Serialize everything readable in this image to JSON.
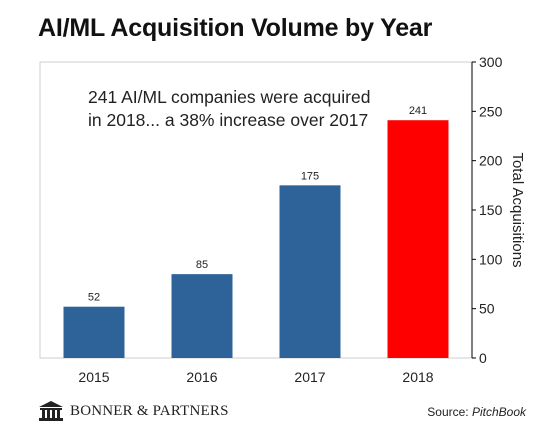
{
  "chart_data": {
    "type": "bar",
    "title": "AI/ML Acquisition Volume by Year",
    "annotation_lines": [
      "241 AI/ML companies were acquired",
      "in 2018... a 38% increase over 2017"
    ],
    "categories": [
      "2015",
      "2016",
      "2017",
      "2018"
    ],
    "values": [
      52,
      85,
      175,
      241
    ],
    "data_labels": [
      "52",
      "85",
      "175",
      "241"
    ],
    "bar_colors": [
      "#2e6399",
      "#2e6399",
      "#2e6399",
      "#ff0000"
    ],
    "ylabel": "Total Acquisitions",
    "ylim": [
      0,
      300
    ],
    "yticks": [
      "0",
      "50",
      "100",
      "150",
      "200",
      "250",
      "300"
    ],
    "y_axis_position": "right",
    "grid": false
  },
  "footer": {
    "logo_text": "BONNER & PARTNERS",
    "logo_icon": "building-columns-icon",
    "source_label": "Source: ",
    "source_name": "PitchBook"
  }
}
